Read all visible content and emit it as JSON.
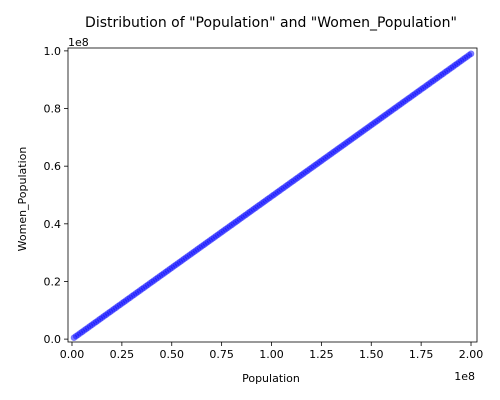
{
  "chart_data": {
    "type": "scatter",
    "title": "Distribution of \"Population\" and \"Women_Population\"",
    "xlabel": "Population",
    "ylabel": "Women_Population",
    "x_offset_label": "1e8",
    "y_offset_label": "1e8",
    "xlim": [
      -2000000,
      203000000
    ],
    "ylim": [
      -1000000,
      101000000
    ],
    "xticks": [
      0,
      25000000,
      50000000,
      75000000,
      100000000,
      125000000,
      150000000,
      175000000,
      200000000
    ],
    "xtick_labels": [
      "0.00",
      "0.25",
      "0.50",
      "0.75",
      "1.00",
      "1.25",
      "1.50",
      "1.75",
      "2.00"
    ],
    "yticks": [
      0,
      20000000,
      40000000,
      60000000,
      80000000,
      100000000
    ],
    "ytick_labels": [
      "0.0",
      "0.2",
      "0.4",
      "0.6",
      "0.8",
      "1.0"
    ],
    "grid": false,
    "point_color": "#0000ff",
    "series": [
      {
        "x_start": 1000000,
        "x_end": 200000000,
        "count": 200,
        "ratio": 0.495
      }
    ]
  }
}
